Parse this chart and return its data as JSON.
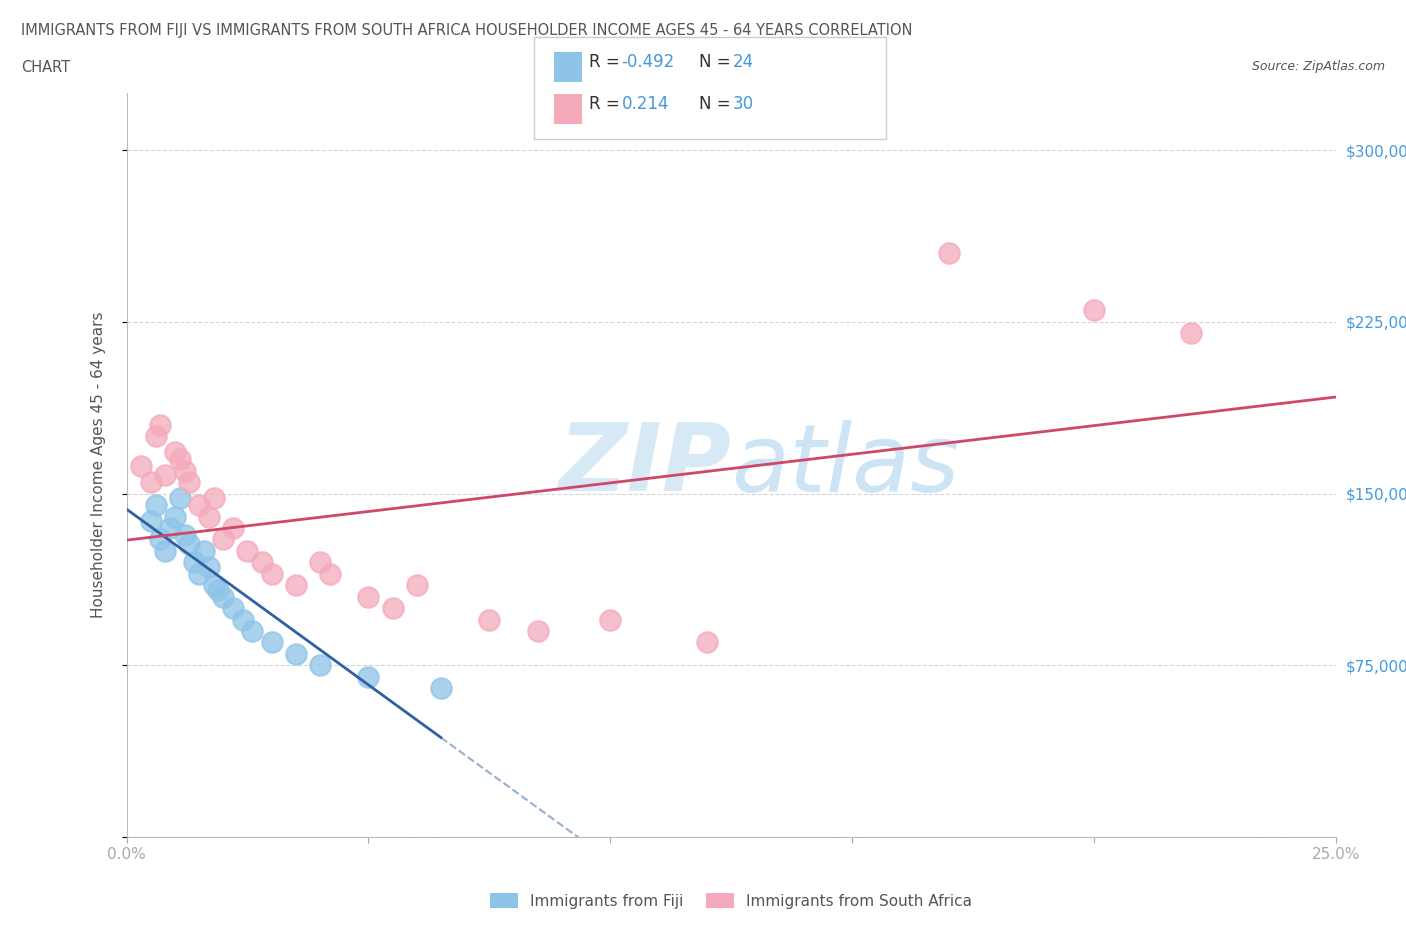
{
  "title_line1": "IMMIGRANTS FROM FIJI VS IMMIGRANTS FROM SOUTH AFRICA HOUSEHOLDER INCOME AGES 45 - 64 YEARS CORRELATION",
  "title_line2": "CHART",
  "source_text": "Source: ZipAtlas.com",
  "ylabel": "Householder Income Ages 45 - 64 years",
  "xlim": [
    0.0,
    0.25
  ],
  "ylim": [
    0,
    325000
  ],
  "xtick_positions": [
    0.0,
    0.05,
    0.1,
    0.15,
    0.2,
    0.25
  ],
  "xtick_labels": [
    "0.0%",
    "",
    "",
    "",
    "",
    "25.0%"
  ],
  "ytick_positions": [
    0,
    75000,
    150000,
    225000,
    300000
  ],
  "ytick_labels": [
    "",
    "$75,000",
    "$150,000",
    "$225,000",
    "$300,000"
  ],
  "fiji_color": "#8EC4E8",
  "sa_color": "#F4AABB",
  "fiji_line_color": "#3060A0",
  "sa_line_color": "#D04868",
  "fiji_r": -0.492,
  "fiji_n": 24,
  "sa_r": 0.214,
  "sa_n": 30,
  "fiji_scatter_x": [
    0.005,
    0.006,
    0.007,
    0.008,
    0.009,
    0.01,
    0.011,
    0.012,
    0.013,
    0.014,
    0.015,
    0.016,
    0.017,
    0.018,
    0.019,
    0.02,
    0.022,
    0.024,
    0.026,
    0.03,
    0.035,
    0.04,
    0.05,
    0.065
  ],
  "fiji_scatter_y": [
    138000,
    145000,
    130000,
    125000,
    135000,
    140000,
    148000,
    132000,
    128000,
    120000,
    115000,
    125000,
    118000,
    110000,
    108000,
    105000,
    100000,
    95000,
    90000,
    85000,
    80000,
    75000,
    70000,
    65000
  ],
  "sa_scatter_x": [
    0.003,
    0.005,
    0.006,
    0.007,
    0.008,
    0.01,
    0.011,
    0.012,
    0.013,
    0.015,
    0.017,
    0.018,
    0.02,
    0.022,
    0.025,
    0.028,
    0.03,
    0.035,
    0.04,
    0.042,
    0.05,
    0.055,
    0.06,
    0.075,
    0.085,
    0.1,
    0.12,
    0.17,
    0.2,
    0.22
  ],
  "sa_scatter_y": [
    162000,
    155000,
    175000,
    180000,
    158000,
    168000,
    165000,
    160000,
    155000,
    145000,
    140000,
    148000,
    130000,
    135000,
    125000,
    120000,
    115000,
    110000,
    120000,
    115000,
    105000,
    100000,
    110000,
    95000,
    90000,
    95000,
    85000,
    255000,
    230000,
    220000
  ],
  "background_color": "#ffffff",
  "grid_color": "#cccccc",
  "title_color": "#555555",
  "axis_label_color": "#555555",
  "tick_label_color": "#4499DD",
  "watermark_color": "#D8E8F4",
  "watermark_text": "ZIPatlas"
}
